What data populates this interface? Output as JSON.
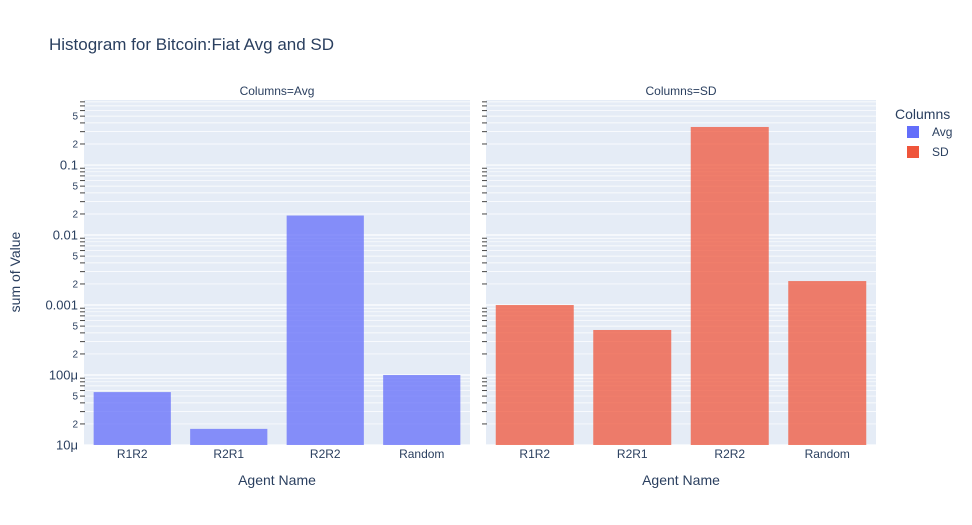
{
  "chart_data": {
    "type": "bar",
    "title": "Histogram for Bitcoin:Fiat Avg and SD",
    "ylabel": "sum of Value",
    "xlabel": "Agent Name",
    "yscale": "log",
    "ylim": [
      1e-05,
      0.85
    ],
    "categories": [
      "R1R2",
      "R2R1",
      "R2R2",
      "Random"
    ],
    "y_major_ticks": [
      {
        "v": 1e-05,
        "label": "10μ"
      },
      {
        "v": 0.0001,
        "label": "100μ"
      },
      {
        "v": 0.001,
        "label": "0.001"
      },
      {
        "v": 0.01,
        "label": "0.01"
      },
      {
        "v": 0.1,
        "label": "0.1"
      }
    ],
    "y_minor_label_digits": [
      2,
      5
    ],
    "legend": {
      "title": "Columns",
      "position": "top-right"
    },
    "panels": [
      {
        "facet": "Columns=Avg",
        "series": "Avg",
        "color": "#636efa",
        "values": [
          5.7e-05,
          1.7e-05,
          0.019,
          0.0001
        ]
      },
      {
        "facet": "Columns=SD",
        "series": "SD",
        "color": "#ef553b",
        "values": [
          0.001,
          0.00044,
          0.35,
          0.0022
        ]
      }
    ]
  }
}
